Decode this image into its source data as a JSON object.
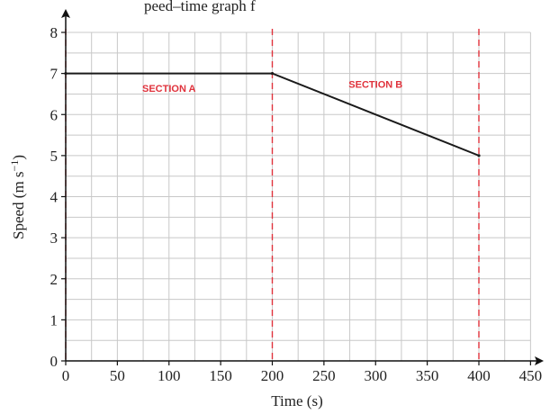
{
  "page": {
    "title_fragment": "peed–time graph f"
  },
  "chart_data": {
    "type": "line",
    "xlabel": "Time (s)",
    "ylabel": "Speed (m s",
    "ylabel_superscript": "−1",
    "ylabel_suffix": ")",
    "xlim": [
      0,
      450
    ],
    "ylim": [
      0,
      8
    ],
    "x_ticks": [
      0,
      50,
      100,
      150,
      200,
      250,
      300,
      350,
      400,
      450
    ],
    "y_ticks": [
      0,
      1,
      2,
      3,
      4,
      5,
      6,
      7,
      8
    ],
    "grid": true,
    "series": [
      {
        "points": [
          {
            "x": 0,
            "y": 7
          },
          {
            "x": 200,
            "y": 7
          },
          {
            "x": 400,
            "y": 5
          }
        ],
        "color": "#1a1a1a"
      }
    ],
    "boundaries": [
      {
        "x": 0,
        "color": "#e0323c"
      },
      {
        "x": 200,
        "color": "#e0323c"
      },
      {
        "x": 400,
        "color": "#e0323c"
      }
    ],
    "annotations": [
      {
        "text": "SECTION A",
        "x": 100,
        "y": 6.55,
        "color": "#e0323c"
      },
      {
        "text": "SECTION B",
        "x": 300,
        "y": 6.65,
        "color": "#e0323c"
      }
    ]
  }
}
